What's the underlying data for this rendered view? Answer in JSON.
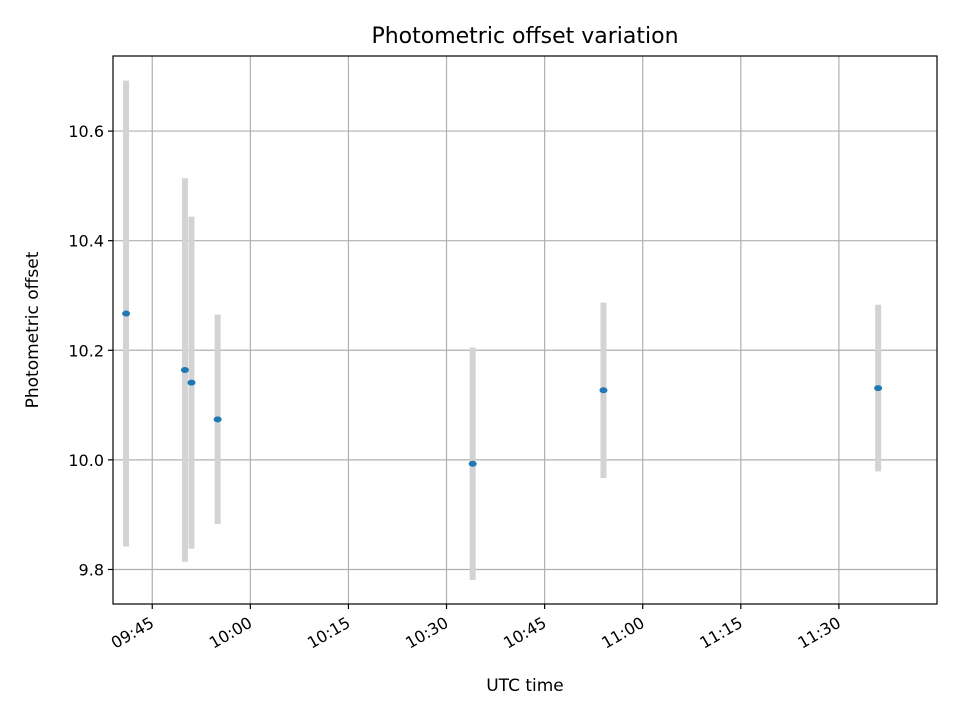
{
  "chart_data": {
    "type": "scatter",
    "title": "Photometric offset variation",
    "xlabel": "UTC time",
    "ylabel": "Photometric offset",
    "x_ticks": [
      "09:45",
      "10:00",
      "10:15",
      "10:30",
      "10:45",
      "11:00",
      "11:15",
      "11:30"
    ],
    "y_ticks": [
      "9.8",
      "10.0",
      "10.2",
      "10.4",
      "10.6"
    ],
    "xlim": [
      "09:39",
      "11:45"
    ],
    "ylim": [
      9.737,
      10.737
    ],
    "grid": true,
    "series": [
      {
        "points": [
          {
            "x": "09:41",
            "y": 10.267,
            "err": 0.425
          },
          {
            "x": "09:50",
            "y": 10.164,
            "err": 0.35
          },
          {
            "x": "09:51",
            "y": 10.141,
            "err": 0.303
          },
          {
            "x": "09:55",
            "y": 10.074,
            "err": 0.191
          },
          {
            "x": "10:34",
            "y": 9.993,
            "err": 0.212
          },
          {
            "x": "10:54",
            "y": 10.127,
            "err": 0.16
          },
          {
            "x": "11:36",
            "y": 10.131,
            "err": 0.152
          }
        ]
      }
    ],
    "colors": {
      "marker": "#1f77b4",
      "errorbar": "#d3d3d3",
      "grid": "#b0b0b0"
    }
  }
}
